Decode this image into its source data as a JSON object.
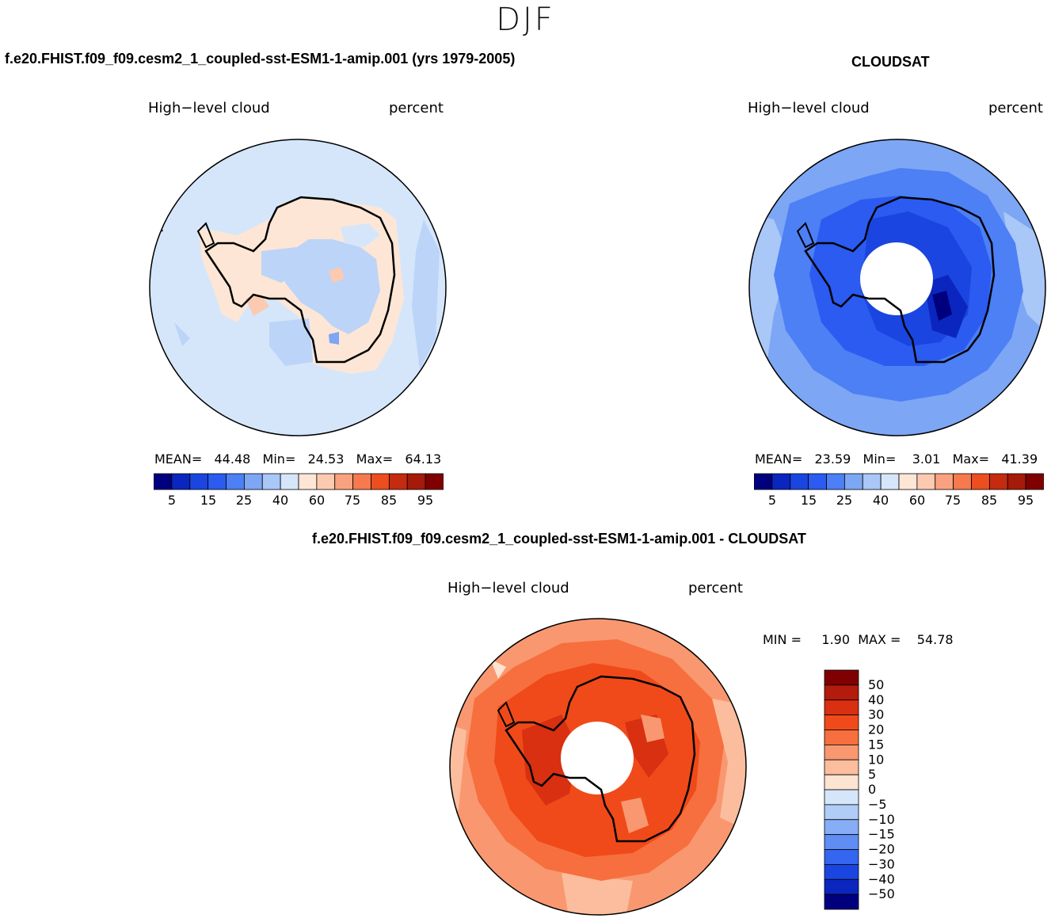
{
  "season_title": "DJF",
  "panels": [
    {
      "case_title": "f.e20.FHIST.f09_f09.cesm2_1_coupled-sst-ESM1-1-amip.001 (yrs 1979-2005)",
      "variable": "High−level cloud",
      "units": "percent",
      "stats_line": "MEAN=   44.48   Min=   24.53   Max=   64.13",
      "field_description": "mostly 40-60 percent; 60-75 near Antarctic coast"
    },
    {
      "case_title": "CLOUDSAT",
      "variable": "High−level cloud",
      "units": "percent",
      "stats_line": "MEAN=   23.59   Min=    3.01   Max=   41.39",
      "field_description": "15-40 percent; lowest 5-15 over East Antarctica; missing data near pole"
    },
    {
      "case_title": "f.e20.FHIST.f09_f09.cesm2_1_coupled-sst-ESM1-1-amip.001 - CLOUDSAT",
      "variable": "High−level cloud",
      "units": "percent",
      "stats_line": "MIN =     1.90  MAX =    54.78",
      "field_description": "difference mostly 15-30 percent; 5-10 at outer rim"
    }
  ],
  "chart_data": [
    {
      "type": "heatmap",
      "projection": "south-polar-stereographic",
      "title": "f.e20.FHIST.f09_f09.cesm2_1_coupled-sst-ESM1-1-amip.001 (yrs 1979-2005)",
      "variable": "High-level cloud",
      "units": "percent",
      "stats": {
        "mean": 44.48,
        "min": 24.53,
        "max": 64.13
      },
      "colorbar_levels": [
        5,
        10,
        15,
        20,
        25,
        30,
        40,
        50,
        60,
        70,
        75,
        80,
        85,
        90,
        95
      ],
      "colorbar_tick_labels": [
        "5",
        "15",
        "25",
        "40",
        "60",
        "75",
        "85",
        "95"
      ],
      "colorbar_colors": [
        "#00007f",
        "#0b26be",
        "#1a45e0",
        "#2b5bf0",
        "#4d7ff5",
        "#7da6f4",
        "#a9c7f7",
        "#d5e6fb",
        "#fde6d6",
        "#fbcab0",
        "#f9a27f",
        "#f67a4d",
        "#ec4e1f",
        "#c52b0e",
        "#a51a09",
        "#7f0000"
      ]
    },
    {
      "type": "heatmap",
      "projection": "south-polar-stereographic",
      "title": "CLOUDSAT",
      "variable": "High-level cloud",
      "units": "percent",
      "stats": {
        "mean": 23.59,
        "min": 3.01,
        "max": 41.39
      },
      "colorbar_levels": [
        5,
        10,
        15,
        20,
        25,
        30,
        40,
        50,
        60,
        70,
        75,
        80,
        85,
        90,
        95
      ],
      "colorbar_tick_labels": [
        "5",
        "15",
        "25",
        "40",
        "60",
        "75",
        "85",
        "95"
      ],
      "colorbar_colors": [
        "#00007f",
        "#0b26be",
        "#1a45e0",
        "#2b5bf0",
        "#4d7ff5",
        "#7da6f4",
        "#a9c7f7",
        "#d5e6fb",
        "#fde6d6",
        "#fbcab0",
        "#f9a27f",
        "#f67a4d",
        "#ec4e1f",
        "#c52b0e",
        "#a51a09",
        "#7f0000"
      ]
    },
    {
      "type": "heatmap",
      "projection": "south-polar-stereographic",
      "title": "f.e20.FHIST.f09_f09.cesm2_1_coupled-sst-ESM1-1-amip.001 - CLOUDSAT",
      "variable": "High-level cloud",
      "units": "percent",
      "stats": {
        "min": 1.9,
        "max": 54.78
      },
      "colorbar_levels": [
        50,
        40,
        30,
        20,
        15,
        10,
        5,
        0,
        -5,
        -10,
        -15,
        -20,
        -30,
        -40,
        -50
      ],
      "colorbar_tick_labels": [
        "50",
        "40",
        "30",
        "20",
        "15",
        "10",
        "5",
        "0",
        "−5",
        "−10",
        "−15",
        "−20",
        "−30",
        "−40",
        "−50"
      ],
      "colorbar_colors": [
        "#7f0000",
        "#b31b0c",
        "#d83010",
        "#f04a1a",
        "#f76f3e",
        "#f99870",
        "#fbbd9d",
        "#fde3d1",
        "#d5e6fb",
        "#b0cdf7",
        "#86adf5",
        "#5f8df3",
        "#3466ef",
        "#1a45e0",
        "#0b26be",
        "#00007f"
      ]
    }
  ]
}
